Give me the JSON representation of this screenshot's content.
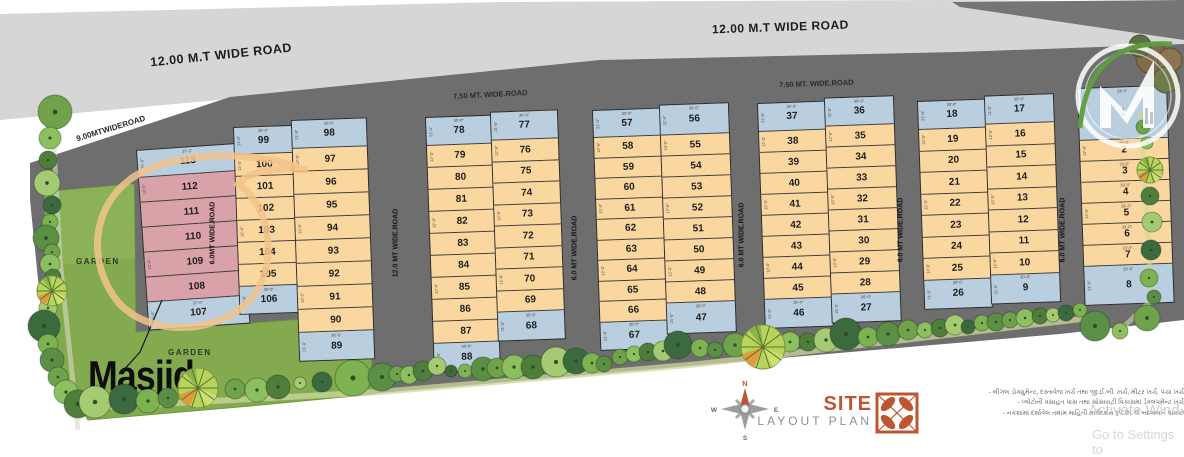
{
  "roads": {
    "top_left": "12.00 M.T WIDE  ROAD",
    "top_right": "12.00 M.T WIDE  ROAD",
    "left": "9.00MTWIDEROAD",
    "inner_left": "7.50 MT. WIDE.ROAD",
    "inner_right": "7.50 MT. WIDE.ROAD",
    "vertical": [
      "6.0MT WIDE.ROAD",
      "12.0 MT  WIDE.ROAD",
      "6.0 MT  WIDE.ROAD",
      "6.0 MT  WIDE.ROAD",
      "6.0 MT  WIDE.ROAD",
      "6.0 MT  WIDE.ROAD"
    ]
  },
  "garden": {
    "label_upper": "GARDEN",
    "label_lower": "GARDEN"
  },
  "annotation": {
    "label": "Masjid",
    "circled_plots": [
      "108",
      "109",
      "110",
      "111",
      "112"
    ]
  },
  "plot_dims": {
    "frontages": [
      "37'-0\"",
      "30'-0\"",
      "30'-0\"",
      "30'-0\"",
      "30'-0\"",
      "30'-0\"",
      "33'-0\""
    ],
    "depth": "12'-0\"",
    "end_depth": "21'-0\""
  },
  "blocks": [
    [
      [
        {
          "n": "113",
          "c": "blue"
        },
        {
          "n": "112",
          "c": "pink"
        },
        {
          "n": "111",
          "c": "pink"
        },
        {
          "n": "110",
          "c": "pink"
        },
        {
          "n": "109",
          "c": "pink"
        },
        {
          "n": "108",
          "c": "pink"
        },
        {
          "n": "107",
          "c": "blue"
        }
      ]
    ],
    [
      [
        {
          "n": "99",
          "c": "blue"
        },
        {
          "n": "100",
          "c": "orange"
        },
        {
          "n": "101",
          "c": "orange"
        },
        {
          "n": "102",
          "c": "orange"
        },
        {
          "n": "103",
          "c": "orange"
        },
        {
          "n": "104",
          "c": "orange"
        },
        {
          "n": "105",
          "c": "orange"
        },
        {
          "n": "106",
          "c": "blue"
        }
      ],
      [
        {
          "n": "98",
          "c": "blue"
        },
        {
          "n": "97",
          "c": "orange"
        },
        {
          "n": "96",
          "c": "orange"
        },
        {
          "n": "95",
          "c": "orange"
        },
        {
          "n": "94",
          "c": "orange"
        },
        {
          "n": "93",
          "c": "orange"
        },
        {
          "n": "92",
          "c": "orange"
        },
        {
          "n": "91",
          "c": "orange"
        },
        {
          "n": "90",
          "c": "orange"
        },
        {
          "n": "89",
          "c": "blue"
        }
      ]
    ],
    [
      [
        {
          "n": "78",
          "c": "blue"
        },
        {
          "n": "79",
          "c": "orange"
        },
        {
          "n": "80",
          "c": "orange"
        },
        {
          "n": "81",
          "c": "orange"
        },
        {
          "n": "82",
          "c": "orange"
        },
        {
          "n": "83",
          "c": "orange"
        },
        {
          "n": "84",
          "c": "orange"
        },
        {
          "n": "85",
          "c": "orange"
        },
        {
          "n": "86",
          "c": "orange"
        },
        {
          "n": "87",
          "c": "orange"
        },
        {
          "n": "88",
          "c": "blue"
        }
      ],
      [
        {
          "n": "77",
          "c": "blue"
        },
        {
          "n": "76",
          "c": "orange"
        },
        {
          "n": "75",
          "c": "orange"
        },
        {
          "n": "74",
          "c": "orange"
        },
        {
          "n": "73",
          "c": "orange"
        },
        {
          "n": "72",
          "c": "orange"
        },
        {
          "n": "71",
          "c": "orange"
        },
        {
          "n": "70",
          "c": "orange"
        },
        {
          "n": "69",
          "c": "orange"
        },
        {
          "n": "68",
          "c": "blue"
        }
      ]
    ],
    [
      [
        {
          "n": "57",
          "c": "blue"
        },
        {
          "n": "58",
          "c": "orange"
        },
        {
          "n": "59",
          "c": "orange"
        },
        {
          "n": "60",
          "c": "orange"
        },
        {
          "n": "61",
          "c": "orange"
        },
        {
          "n": "62",
          "c": "orange"
        },
        {
          "n": "63",
          "c": "orange"
        },
        {
          "n": "64",
          "c": "orange"
        },
        {
          "n": "65",
          "c": "orange"
        },
        {
          "n": "66",
          "c": "orange"
        },
        {
          "n": "67",
          "c": "blue"
        }
      ],
      [
        {
          "n": "56",
          "c": "blue"
        },
        {
          "n": "55",
          "c": "orange"
        },
        {
          "n": "54",
          "c": "orange"
        },
        {
          "n": "53",
          "c": "orange"
        },
        {
          "n": "52",
          "c": "orange"
        },
        {
          "n": "51",
          "c": "orange"
        },
        {
          "n": "50",
          "c": "orange"
        },
        {
          "n": "49",
          "c": "orange"
        },
        {
          "n": "48",
          "c": "orange"
        },
        {
          "n": "47",
          "c": "blue"
        }
      ]
    ],
    [
      [
        {
          "n": "37",
          "c": "blue"
        },
        {
          "n": "38",
          "c": "orange"
        },
        {
          "n": "39",
          "c": "orange"
        },
        {
          "n": "40",
          "c": "orange"
        },
        {
          "n": "41",
          "c": "orange"
        },
        {
          "n": "42",
          "c": "orange"
        },
        {
          "n": "43",
          "c": "orange"
        },
        {
          "n": "44",
          "c": "orange"
        },
        {
          "n": "45",
          "c": "orange"
        },
        {
          "n": "46",
          "c": "blue"
        }
      ],
      [
        {
          "n": "36",
          "c": "blue"
        },
        {
          "n": "35",
          "c": "orange"
        },
        {
          "n": "34",
          "c": "orange"
        },
        {
          "n": "33",
          "c": "orange"
        },
        {
          "n": "32",
          "c": "orange"
        },
        {
          "n": "31",
          "c": "orange"
        },
        {
          "n": "30",
          "c": "orange"
        },
        {
          "n": "29",
          "c": "orange"
        },
        {
          "n": "28",
          "c": "orange"
        },
        {
          "n": "27",
          "c": "blue"
        }
      ]
    ],
    [
      [
        {
          "n": "18",
          "c": "blue"
        },
        {
          "n": "19",
          "c": "orange"
        },
        {
          "n": "20",
          "c": "orange"
        },
        {
          "n": "21",
          "c": "orange"
        },
        {
          "n": "22",
          "c": "orange"
        },
        {
          "n": "23",
          "c": "orange"
        },
        {
          "n": "24",
          "c": "orange"
        },
        {
          "n": "25",
          "c": "orange"
        },
        {
          "n": "26",
          "c": "blue"
        }
      ],
      [
        {
          "n": "17",
          "c": "blue"
        },
        {
          "n": "16",
          "c": "orange"
        },
        {
          "n": "15",
          "c": "orange"
        },
        {
          "n": "14",
          "c": "orange"
        },
        {
          "n": "13",
          "c": "orange"
        },
        {
          "n": "12",
          "c": "orange"
        },
        {
          "n": "11",
          "c": "orange"
        },
        {
          "n": "10",
          "c": "orange"
        },
        {
          "n": "9",
          "c": "blue"
        }
      ]
    ],
    [
      [
        {
          "n": "1",
          "c": "blue"
        },
        {
          "n": "2",
          "c": "orange"
        },
        {
          "n": "3",
          "c": "orange"
        },
        {
          "n": "4",
          "c": "orange"
        },
        {
          "n": "5",
          "c": "orange"
        },
        {
          "n": "6",
          "c": "orange"
        },
        {
          "n": "7",
          "c": "orange"
        },
        {
          "n": "8",
          "c": "blue"
        }
      ]
    ]
  ],
  "compass": {
    "north": "N",
    "south": "S",
    "east": "E",
    "west": "W"
  },
  "title": {
    "site": "SITE",
    "layout_plan": "LAYOUT PLAN"
  },
  "notes": [
    "- લીગલ ડોક્યુમેન્ટ, દસ્તાવેજ ખર્ચ તથા જી.ઈ.બી. ખર્ચ, મીટર ખર્ચ, પંચા ખર્ચ",
    "- પ્લોટોની વસાહત પાસ તથા સોસાયટી વિકાસમાં ડેવલપમેન્ટ ખર્ચ",
    "- નકશામાં દર્શાવેલ તમામ માહિતી માર્ગદર્શન રૂપે છે, જે બદલાવને પાત્ર છે"
  ],
  "watermark": {
    "line1": "Activate Wind",
    "line2": "Go to Settings to"
  },
  "colors": {
    "accent": "#bf5430",
    "plot_end": "#b9cede",
    "plot_mid": "#fbd7a0",
    "plot_highlight": "#d9a2a8",
    "road_dark": "#6e6e6e",
    "road_light": "#d6d6d6",
    "garden": "#83aa4f"
  }
}
